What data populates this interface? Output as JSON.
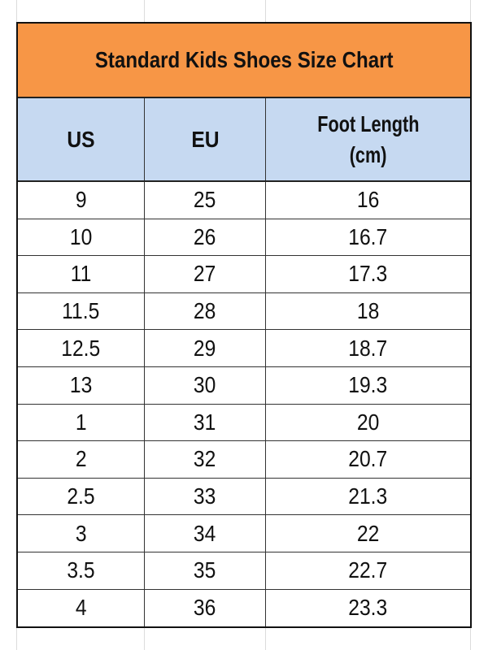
{
  "title": "Standard Kids Shoes Size Chart",
  "headers": {
    "us": "US",
    "eu": "EU",
    "foot_length_line1": "Foot Length",
    "foot_length_line2": "(cm)"
  },
  "rows": [
    {
      "us": "9",
      "eu": "25",
      "cm": "16"
    },
    {
      "us": "10",
      "eu": "26",
      "cm": "16.7"
    },
    {
      "us": "11",
      "eu": "27",
      "cm": "17.3"
    },
    {
      "us": "11.5",
      "eu": "28",
      "cm": "18"
    },
    {
      "us": "12.5",
      "eu": "29",
      "cm": "18.7"
    },
    {
      "us": "13",
      "eu": "30",
      "cm": "19.3"
    },
    {
      "us": "1",
      "eu": "31",
      "cm": "20"
    },
    {
      "us": "2",
      "eu": "32",
      "cm": "20.7"
    },
    {
      "us": "2.5",
      "eu": "33",
      "cm": "21.3"
    },
    {
      "us": "3",
      "eu": "34",
      "cm": "22"
    },
    {
      "us": "3.5",
      "eu": "35",
      "cm": "22.7"
    },
    {
      "us": "4",
      "eu": "36",
      "cm": "23.3"
    }
  ],
  "colors": {
    "title_bg": "#f79646",
    "header_bg": "#c6d9f1",
    "border": "#111111"
  }
}
